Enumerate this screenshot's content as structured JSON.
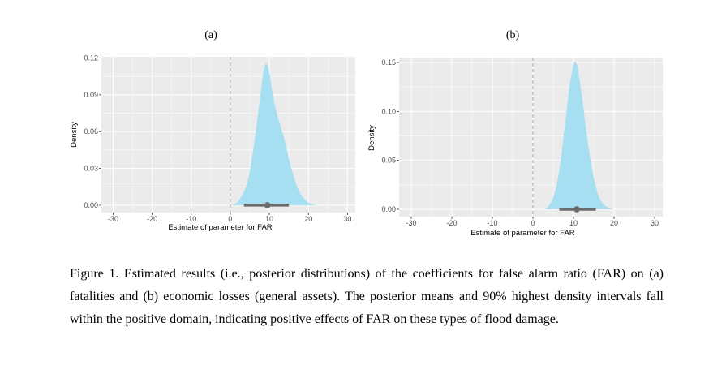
{
  "caption": "Figure 1. Estimated results (i.e., posterior distributions) of the coefficients for false alarm ratio (FAR) on (a) fatalities and (b) economic losses (general assets). The posterior means and 90% highest density intervals fall within the positive domain, indicating positive effects of FAR on these types of flood damage.",
  "colors": {
    "panel_background": "#ebebeb",
    "gridline": "#ffffff",
    "density_fill": "#a6dff2",
    "interval_line": "#6b6b6b",
    "zero_line": "#a9a9a9"
  },
  "chart_data": [
    {
      "type": "area",
      "panel_label": "(a)",
      "xlabel": "Estimate of parameter for FAR",
      "ylabel": "Density",
      "xlim": [
        -33,
        32
      ],
      "ylim": [
        -0.006,
        0.121
      ],
      "x_ticks": [
        -30,
        -20,
        -10,
        0,
        10,
        20,
        30
      ],
      "x_tick_labels": [
        "-30",
        "-20",
        "-10",
        "0",
        "10",
        "20",
        "30"
      ],
      "y_ticks": [
        0.0,
        0.03,
        0.06,
        0.09,
        0.12
      ],
      "y_tick_labels": [
        "0.00",
        "0.03",
        "0.06",
        "0.09",
        "0.12"
      ],
      "grid": true,
      "vline_x": 0,
      "density": {
        "x": [
          0,
          2,
          4,
          5,
          6,
          7,
          8,
          8.5,
          9,
          9.5,
          10,
          11,
          12,
          13,
          14,
          15,
          16,
          17,
          18,
          19,
          20,
          21,
          22
        ],
        "y": [
          0.0,
          0.003,
          0.015,
          0.028,
          0.048,
          0.072,
          0.097,
          0.108,
          0.115,
          0.114,
          0.108,
          0.088,
          0.074,
          0.063,
          0.052,
          0.038,
          0.026,
          0.016,
          0.009,
          0.005,
          0.002,
          0.001,
          0.0
        ]
      },
      "posterior_mean": 9.5,
      "hdi_90": [
        3.5,
        15.0
      ]
    },
    {
      "type": "area",
      "panel_label": "(b)",
      "xlabel": "Estimate of parameter for FAR",
      "ylabel": "Density",
      "xlim": [
        -33,
        32
      ],
      "ylim": [
        -0.0075,
        0.155
      ],
      "x_ticks": [
        -30,
        -20,
        -10,
        0,
        10,
        20,
        30
      ],
      "x_tick_labels": [
        "-30",
        "-20",
        "-10",
        "0",
        "10",
        "20",
        "30"
      ],
      "y_ticks": [
        0.0,
        0.05,
        0.1,
        0.15
      ],
      "y_tick_labels": [
        "0.00",
        "0.05",
        "0.10",
        "0.15"
      ],
      "grid": true,
      "vline_x": 0,
      "density": {
        "x": [
          3,
          4,
          5,
          6,
          7,
          8,
          9,
          10,
          10.5,
          11,
          12,
          13,
          14,
          15,
          16,
          17,
          18,
          19,
          20
        ],
        "y": [
          0.0,
          0.004,
          0.012,
          0.028,
          0.055,
          0.09,
          0.125,
          0.148,
          0.15,
          0.145,
          0.118,
          0.085,
          0.055,
          0.032,
          0.016,
          0.007,
          0.003,
          0.001,
          0.0
        ]
      },
      "posterior_mean": 10.8,
      "hdi_90": [
        6.5,
        15.5
      ]
    }
  ]
}
